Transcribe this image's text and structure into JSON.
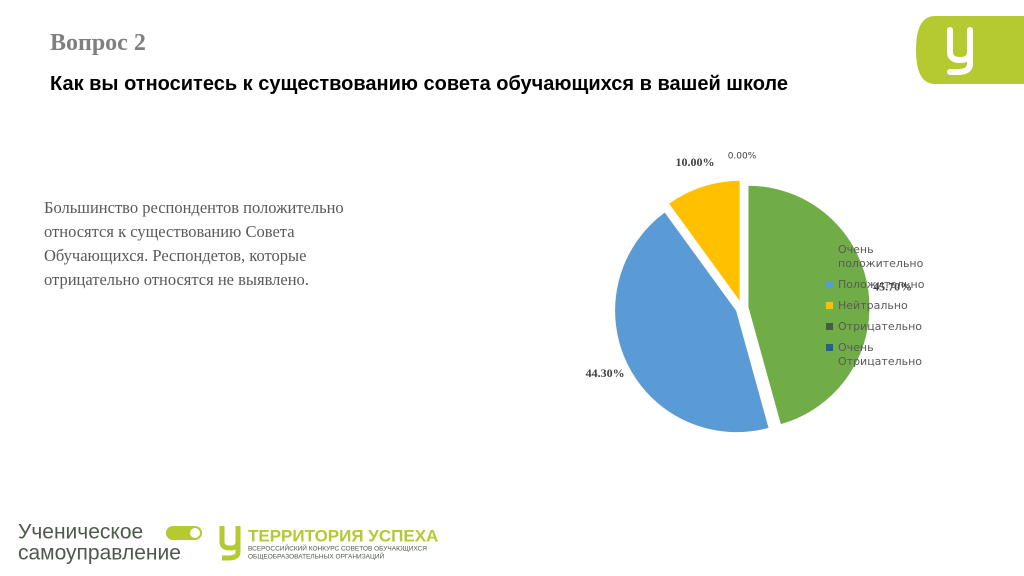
{
  "header": {
    "question": "Вопрос 2",
    "title": "Как вы относитесь к существованию совета обучающихся в вашей школе"
  },
  "body_text": [
    "Большинство респондентов положительно",
    "относятся к существованию Совета",
    "Обучающихся. Респондетов, которые",
    "отрицательно относятся не выявлено."
  ],
  "chart_data": {
    "type": "pie",
    "categories": [
      "Очень положительно",
      "Положительно",
      "Нейтрально",
      "Отрицательно",
      "Очень Отрицательно"
    ],
    "values": [
      45.7,
      44.3,
      10.0,
      0,
      0
    ],
    "value_labels": [
      "45.70%",
      "44.30%",
      "10.00%",
      "0.00%",
      null
    ],
    "colors": [
      "#70ad47",
      "#5b9bd5",
      "#ffc000",
      "#4a5a48",
      "#255e91"
    ],
    "legend": "right"
  },
  "footer": {
    "left_line1": "Ученическое",
    "left_line2": "самоуправление",
    "right_title": "ТЕРРИТОРИЯ УСПЕХА",
    "right_sub1": "ВСЕРОССИЙСКИЙ КОНКУРС СОВЕТОВ ОБУЧАЮЩИХСЯ",
    "right_sub2": "ОБЩЕОБРАЗОВАТЕЛЬНЫХ ОРГАНИЗАЦИЙ"
  }
}
